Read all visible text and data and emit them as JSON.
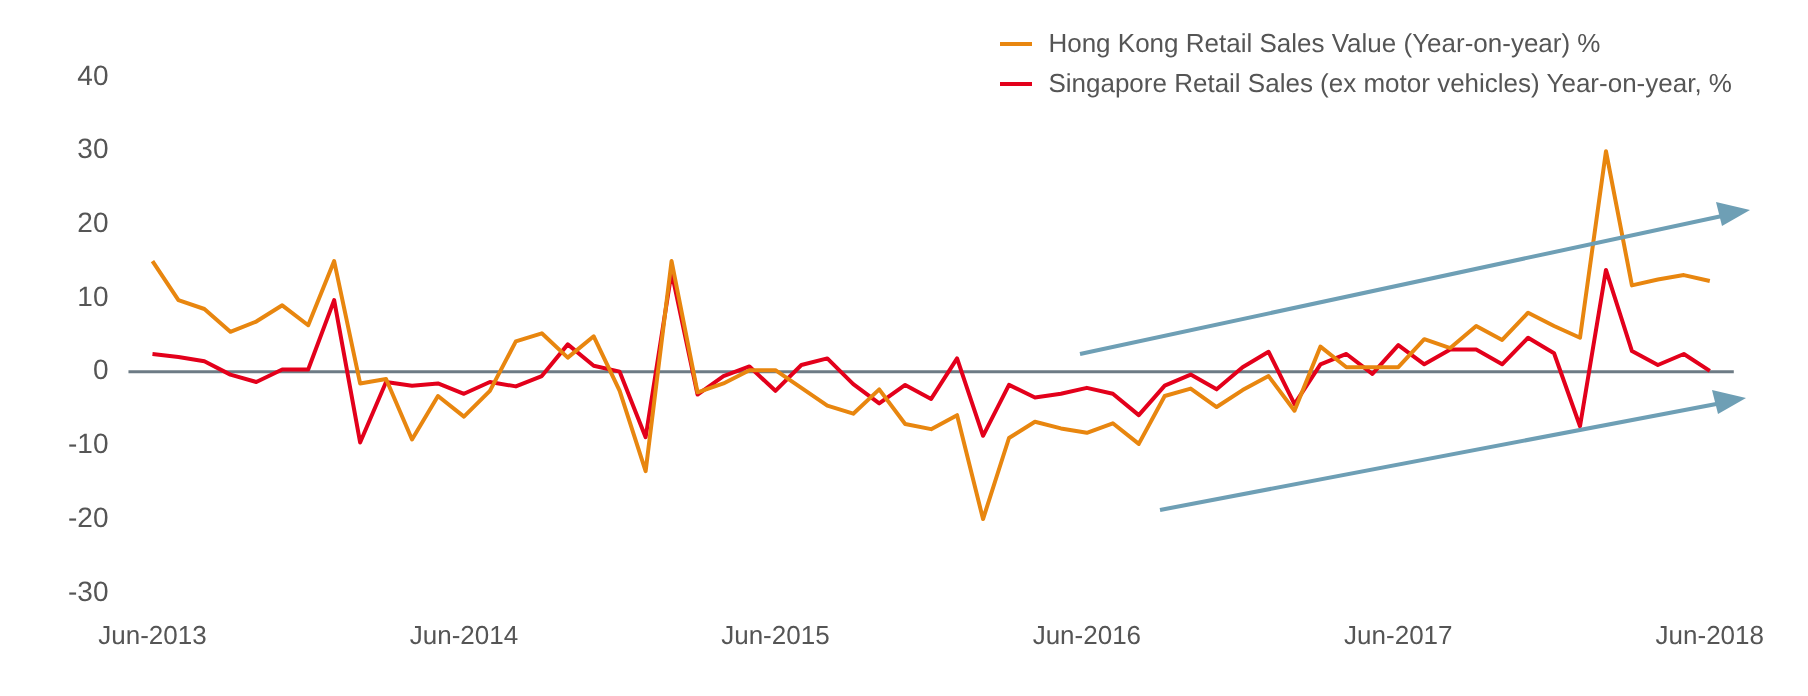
{
  "chart_data": {
    "type": "line",
    "categories": [
      "Jun-2013",
      null,
      null,
      null,
      null,
      null,
      null,
      null,
      null,
      null,
      null,
      null,
      "Jun-2014",
      null,
      null,
      null,
      null,
      null,
      null,
      null,
      null,
      null,
      null,
      null,
      "Jun-2015",
      null,
      null,
      null,
      null,
      null,
      null,
      null,
      null,
      null,
      null,
      null,
      "Jun-2016",
      null,
      null,
      null,
      null,
      null,
      null,
      null,
      null,
      null,
      null,
      null,
      "Jun-2017",
      null,
      null,
      null,
      null,
      null,
      null,
      null,
      null,
      null,
      null,
      null,
      "Jun-2018"
    ],
    "series": [
      {
        "name": "Hong Kong Retail Sales Value (Year-on-year) %",
        "color": "#e8860f",
        "values": [
          15.0,
          9.7,
          8.5,
          5.4,
          6.8,
          9.0,
          6.3,
          15.0,
          -1.6,
          -1.0,
          -9.2,
          -3.3,
          -6.1,
          -2.6,
          4.1,
          5.2,
          1.9,
          4.8,
          -2.6,
          -13.5,
          15.0,
          -2.8,
          -1.6,
          0.2,
          0.2,
          -2.2,
          -4.6,
          -5.7,
          -2.4,
          -7.1,
          -7.8,
          -5.9,
          -20.0,
          -9.0,
          -6.8,
          -7.7,
          -8.3,
          -7.0,
          -9.8,
          -3.3,
          -2.3,
          -4.8,
          -2.5,
          -0.6,
          -5.3,
          3.4,
          0.6,
          0.6,
          0.6,
          4.4,
          3.2,
          6.2,
          4.3,
          8.0,
          6.2,
          4.6,
          29.9,
          11.7,
          12.5,
          13.1,
          12.3
        ]
      },
      {
        "name": "Singapore Retail Sales (ex motor vehicles) Year-on-year, %",
        "color": "#e3001b",
        "values": [
          2.4,
          2.0,
          1.4,
          -0.4,
          -1.4,
          0.3,
          0.3,
          9.7,
          -9.6,
          -1.4,
          -1.9,
          -1.6,
          -3.0,
          -1.4,
          -2.0,
          -0.6,
          3.7,
          0.8,
          0.0,
          -8.9,
          13.5,
          -3.1,
          -0.6,
          0.7,
          -2.6,
          0.9,
          1.8,
          -1.7,
          -4.3,
          -1.8,
          -3.7,
          1.8,
          -8.7,
          -1.8,
          -3.5,
          -3.0,
          -2.2,
          -3.0,
          -5.9,
          -1.9,
          -0.4,
          -2.4,
          0.6,
          2.7,
          -4.4,
          1.0,
          2.4,
          -0.3,
          3.6,
          1.0,
          3.0,
          3.0,
          1.0,
          4.6,
          2.5,
          -7.4,
          13.8,
          2.8,
          0.9,
          2.4,
          0.1
        ]
      }
    ],
    "ylim": [
      -30,
      40
    ],
    "yticks": [
      -30,
      -20,
      -10,
      0,
      10,
      20,
      30,
      40
    ],
    "ref_lines": [
      {
        "axis": "y",
        "value": 0,
        "color": "#6d7b85"
      }
    ],
    "grid": false,
    "legend": "top right",
    "marker": "none",
    "line_style": "solid"
  }
}
